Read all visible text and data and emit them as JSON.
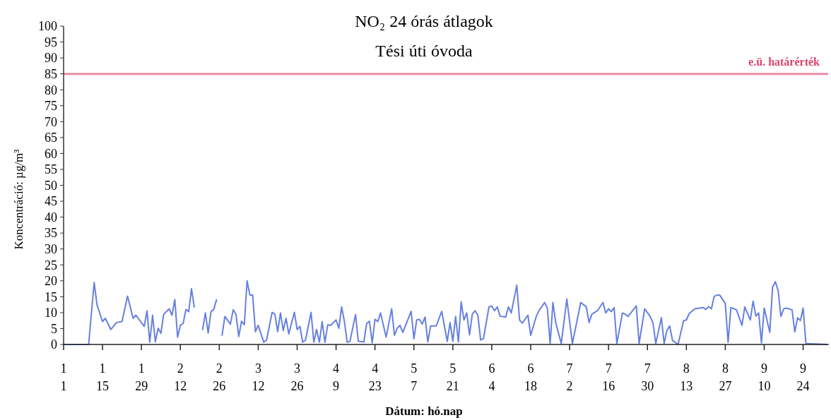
{
  "chart_data": {
    "type": "line",
    "title": "NO₂ 24 órás átlagok",
    "subtitle": "Tési úti óvoda",
    "xlabel": "Dátum: hó.nap",
    "ylabel": "Koncentráció: µg/m³",
    "x": [
      "--01-01",
      "--01-10",
      "--01-12",
      "--01-13",
      "--01-15",
      "--01-16",
      "--01-18",
      "--01-20",
      "--01-22",
      "--01-24",
      "--01-26",
      "--01-27",
      "--01-30",
      "--01-31",
      "--02-01",
      "--02-02",
      "--02-03",
      "--02-04",
      "--02-05",
      "--02-06",
      "--02-08",
      "--02-09",
      "--02-10",
      "--02-11",
      "--02-12",
      "--02-13",
      "--02-14",
      "--02-15",
      "--02-16",
      "--02-17",
      "--02-18",
      "--02-20",
      "--02-21",
      "--02-22",
      "--02-23",
      "--02-24",
      "--02-25",
      "--02-26",
      "--02-27",
      "--02-28",
      "--03-02",
      "--03-03",
      "--03-04",
      "--03-05",
      "--03-06",
      "--03-07",
      "--03-08",
      "--03-09",
      "--03-10",
      "--03-11",
      "--03-12",
      "--03-14",
      "--03-15",
      "--03-17",
      "--03-18",
      "--03-19",
      "--03-20",
      "--03-21",
      "--03-22",
      "--03-23",
      "--03-25",
      "--03-26",
      "--03-27",
      "--03-28",
      "--03-29",
      "--03-31",
      "--04-01",
      "--04-02",
      "--04-03",
      "--04-04",
      "--04-05",
      "--04-06",
      "--04-07",
      "--04-09",
      "--04-10",
      "--04-11",
      "--04-12",
      "--04-13",
      "--04-14",
      "--04-16",
      "--04-17",
      "--04-19",
      "--04-20",
      "--04-21",
      "--04-22",
      "--04-23",
      "--04-24",
      "--04-25",
      "--04-27",
      "--04-29",
      "--04-30",
      "--05-01",
      "--05-02",
      "--05-03",
      "--05-06",
      "--05-07",
      "--05-08",
      "--05-09",
      "--05-10",
      "--05-11",
      "--05-12",
      "--05-13",
      "--05-15",
      "--05-17",
      "--05-19",
      "--05-20",
      "--05-21",
      "--05-22",
      "--05-23",
      "--05-24",
      "--05-25",
      "--05-26",
      "--05-27",
      "--05-28",
      "--05-29",
      "--05-30",
      "--05-31",
      "--06-01",
      "--06-03",
      "--06-04",
      "--06-05",
      "--06-06",
      "--06-07",
      "--06-09",
      "--06-10",
      "--06-11",
      "--06-13",
      "--06-14",
      "--06-15",
      "--06-17",
      "--06-18",
      "--06-20",
      "--06-21",
      "--06-23",
      "--06-24",
      "--06-25",
      "--06-26",
      "--06-27",
      "--06-29",
      "--07-01",
      "--07-03",
      "--07-06",
      "--07-07",
      "--07-08",
      "--07-09",
      "--07-10",
      "--07-12",
      "--07-14",
      "--07-15",
      "--07-16",
      "--07-17",
      "--07-18",
      "--07-19",
      "--07-21",
      "--07-22",
      "--07-23",
      "--07-26",
      "--07-27",
      "--07-29",
      "--07-31",
      "--08-01",
      "--08-02",
      "--08-04",
      "--08-05",
      "--08-06",
      "--08-07",
      "--08-08",
      "--08-10",
      "--08-12",
      "--08-13",
      "--08-14",
      "--08-16",
      "--08-19",
      "--08-20",
      "--08-21",
      "--08-22",
      "--08-23",
      "--08-24",
      "--08-25",
      "--08-27",
      "--08-28",
      "--08-29",
      "--08-31",
      "--09-02",
      "--09-03",
      "--09-05",
      "--09-06",
      "--09-07",
      "--09-08",
      "--09-09",
      "--09-10",
      "--09-12",
      "--09-13",
      "--09-14",
      "--09-15",
      "--09-16",
      "--09-17",
      "--09-18",
      "--09-20",
      "--09-21",
      "--09-22",
      "--09-23",
      "--09-24",
      "--09-25",
      "--10-03"
    ],
    "series": [
      {
        "color": "#6680e0",
        "values": [
          0,
          0,
          19.5,
          12.5,
          7.2,
          8.2,
          4.7,
          6.9,
          7.2,
          15.2,
          8.2,
          9.2,
          5.7,
          10.6,
          0.7,
          9.2,
          0.8,
          5.1,
          3.5,
          9.5,
          11.2,
          9.2,
          14.1,
          2.3,
          6,
          6.6,
          11,
          10.3,
          17.5,
          11.8,
          null,
          4.7,
          9.9,
          3.6,
          10.3,
          11,
          14,
          null,
          2.9,
          8.8,
          6.4,
          10.9,
          9.5,
          2.5,
          7.3,
          6.2,
          20,
          15.5,
          15.5,
          4,
          6,
          0.7,
          1.4,
          10.1,
          9.5,
          4,
          9.9,
          4.4,
          8.2,
          3.3,
          10.1,
          4.7,
          5.7,
          0.7,
          1.4,
          10.1,
          0.7,
          4.7,
          0.7,
          7.2,
          0.7,
          6.2,
          6,
          7.7,
          5.1,
          11.8,
          7.2,
          0.7,
          1,
          9.4,
          1,
          0.8,
          6.6,
          7.3,
          0.5,
          7.9,
          7.2,
          9.9,
          2.3,
          11.2,
          2.9,
          5.1,
          6,
          3.8,
          10.4,
          1.8,
          7.7,
          7.9,
          6.4,
          8.6,
          0.8,
          5.8,
          5.8,
          10.4,
          1,
          6.9,
          1,
          8.8,
          0.8,
          13.4,
          7.7,
          9.9,
          3,
          9.5,
          10.6,
          9.2,
          1.4,
          1.8,
          11.8,
          12.1,
          10.6,
          11.8,
          8.9,
          8.6,
          11.8,
          9.9,
          18.6,
          7.7,
          6.7,
          9.2,
          2.9,
          8.8,
          10.6,
          13.2,
          11.4,
          0.3,
          13.2,
          6.9,
          0.3,
          14.3,
          0.3,
          13.2,
          12.5,
          11.8,
          6.9,
          9.5,
          10.6,
          13.2,
          9.9,
          11.2,
          10.3,
          11.6,
          0.3,
          9.9,
          9.5,
          8.8,
          12.1,
          0.3,
          11.2,
          8.8,
          6.7,
          0.3,
          8.4,
          0.3,
          4.4,
          5.8,
          1.3,
          0,
          7.5,
          7.7,
          9.7,
          11.2,
          11.6,
          11,
          11.9,
          11.2,
          15.1,
          15.5,
          15.5,
          12.9,
          0.7,
          11.6,
          10.9,
          6,
          11.8,
          7.7,
          13.6,
          8.9,
          9.9,
          0.5,
          11.4,
          3.8,
          18,
          19.7,
          16.9,
          8.8,
          11.2,
          11.4,
          10.9,
          4,
          8.4,
          7.5,
          11.4,
          0.3,
          0
        ]
      }
    ],
    "xlim": [
      "--01-01",
      "--10-03"
    ],
    "xticks": [
      {
        "value": "--01-01",
        "label": "1\n1"
      },
      {
        "value": "--01-15",
        "label": "1\n15"
      },
      {
        "value": "--01-29",
        "label": "1\n29"
      },
      {
        "value": "--02-12",
        "label": "2\n12"
      },
      {
        "value": "--02-26",
        "label": "2\n26"
      },
      {
        "value": "--03-12",
        "label": "3\n12"
      },
      {
        "value": "--03-26",
        "label": "3\n26"
      },
      {
        "value": "--04-09",
        "label": "4\n9"
      },
      {
        "value": "--04-23",
        "label": "4\n23"
      },
      {
        "value": "--05-07",
        "label": "5\n7"
      },
      {
        "value": "--05-21",
        "label": "5\n21"
      },
      {
        "value": "--06-04",
        "label": "6\n4"
      },
      {
        "value": "--06-18",
        "label": "6\n18"
      },
      {
        "value": "--07-02",
        "label": "7\n2"
      },
      {
        "value": "--07-16",
        "label": "7\n16"
      },
      {
        "value": "--07-30",
        "label": "7\n30"
      },
      {
        "value": "--08-13",
        "label": "8\n13"
      },
      {
        "value": "--08-27",
        "label": "8\n27"
      },
      {
        "value": "--09-10",
        "label": "9\n10"
      },
      {
        "value": "--09-24",
        "label": "9\n24"
      }
    ],
    "ylim": [
      0,
      100
    ],
    "yticks": [
      0,
      5,
      10,
      15,
      20,
      25,
      30,
      35,
      40,
      45,
      50,
      55,
      60,
      65,
      70,
      75,
      80,
      85,
      90,
      95,
      100
    ],
    "ref_lines": [
      {
        "axis": "y",
        "value": 85,
        "label": "e.ü. határérték",
        "color": "#e0406a"
      }
    ],
    "marker": "none",
    "line_style": "solid",
    "grid": false
  }
}
